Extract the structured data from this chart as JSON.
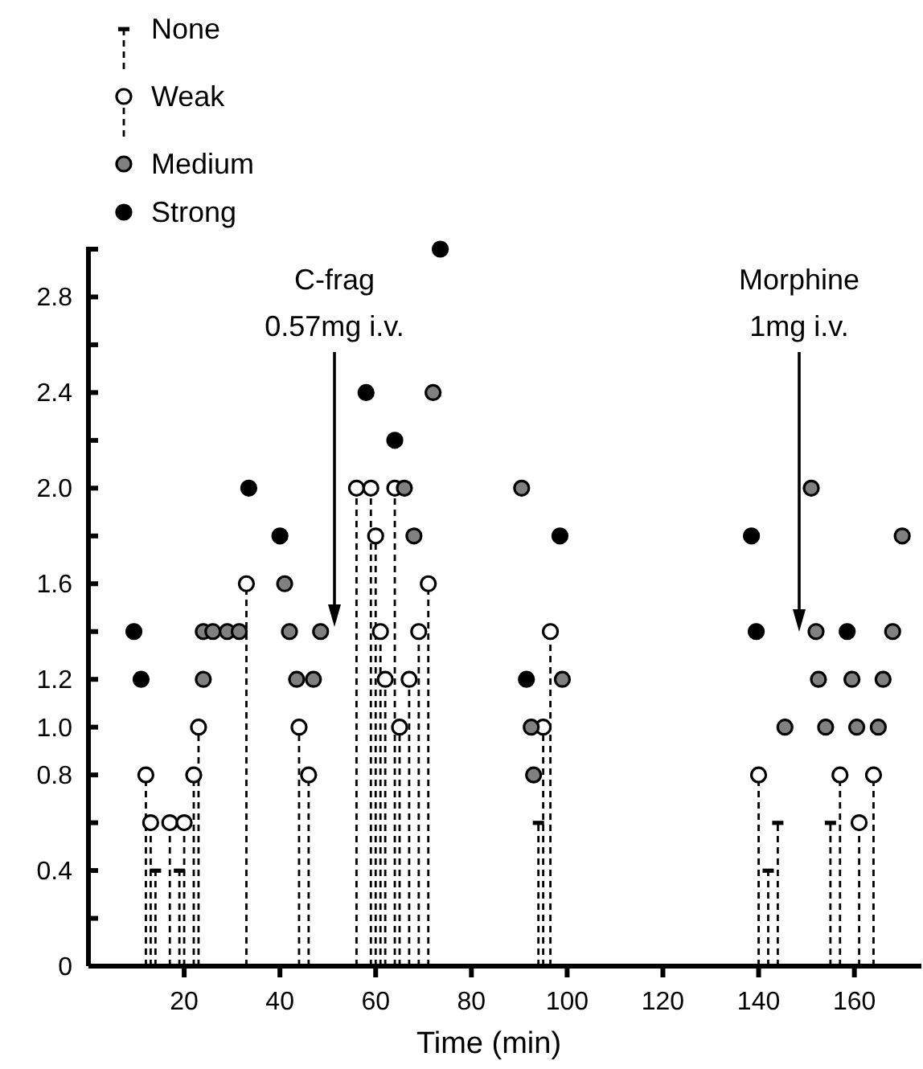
{
  "chart_data": {
    "type": "scatter",
    "xlabel": "Time (min)",
    "xlim": [
      0,
      174
    ],
    "ylim": [
      0,
      3.0
    ],
    "xticks": [
      20,
      40,
      60,
      80,
      100,
      120,
      140,
      160
    ],
    "yticks": [
      0,
      {
        "value": 0.2,
        "label": null
      },
      0.4,
      {
        "value": 0.6,
        "label": null
      },
      0.8,
      {
        "value": 1.0,
        "label": "1.0"
      },
      1.2,
      {
        "value": 1.4,
        "label": null
      },
      1.6,
      {
        "value": 1.8,
        "label": null
      },
      {
        "value": 2.0,
        "label": "2.0"
      },
      {
        "value": 2.2,
        "label": null
      },
      2.4,
      {
        "value": 2.6,
        "label": null
      },
      2.8
    ],
    "legend": "top left",
    "series": [
      {
        "name": "None",
        "type": "lollipop",
        "line_style": "dashed",
        "color": "#000000",
        "x": [
          14,
          19,
          94,
          142,
          144,
          155
        ],
        "values": [
          0.4,
          0.4,
          0.6,
          0.4,
          0.6,
          0.6
        ]
      },
      {
        "name": "Weak",
        "type": "lollipop",
        "marker": "circle",
        "line_style": "dashed",
        "color": "#ffffff",
        "x": [
          12,
          13,
          17,
          20,
          22,
          23,
          33,
          44,
          46,
          56,
          59,
          60,
          61,
          62,
          64,
          65,
          67,
          69,
          71,
          95,
          96.5,
          140,
          157,
          161,
          164
        ],
        "values": [
          0.8,
          0.6,
          0.6,
          0.6,
          0.8,
          1.0,
          1.6,
          1.0,
          0.8,
          2.0,
          2.0,
          1.8,
          1.4,
          1.2,
          2.0,
          1.0,
          1.2,
          1.4,
          1.6,
          1.0,
          1.4,
          0.8,
          0.8,
          0.6,
          0.8
        ]
      },
      {
        "name": "Medium",
        "marker": "circle",
        "color": "#808080",
        "x": [
          24,
          24,
          26,
          29,
          31.5,
          41,
          42,
          43.5,
          47,
          48.5,
          66,
          68,
          72,
          90.5,
          92.5,
          93,
          99,
          145.5,
          151,
          152,
          152.5,
          154,
          159.5,
          160.5,
          165,
          166,
          168,
          170
        ],
        "values": [
          1.2,
          1.4,
          1.4,
          1.4,
          1.4,
          1.6,
          1.4,
          1.2,
          1.2,
          1.4,
          2.0,
          1.8,
          2.4,
          2.0,
          1.0,
          0.8,
          1.2,
          1.0,
          2.0,
          1.4,
          1.2,
          1.0,
          1.2,
          1.0,
          1.0,
          1.2,
          1.4,
          1.8
        ]
      },
      {
        "name": "Strong",
        "marker": "circle",
        "color": "#000000",
        "x": [
          9.5,
          11,
          33.5,
          40,
          58,
          64,
          73.5,
          91.5,
          98.5,
          138.5,
          139.5,
          158.5
        ],
        "values": [
          1.4,
          1.2,
          2.0,
          1.8,
          2.4,
          2.2,
          3.0,
          1.2,
          1.8,
          1.8,
          1.4,
          1.4
        ]
      }
    ],
    "annotations": [
      "C-frag\n0.57mg i.v.",
      "Morphine\n1mg i.v."
    ]
  }
}
